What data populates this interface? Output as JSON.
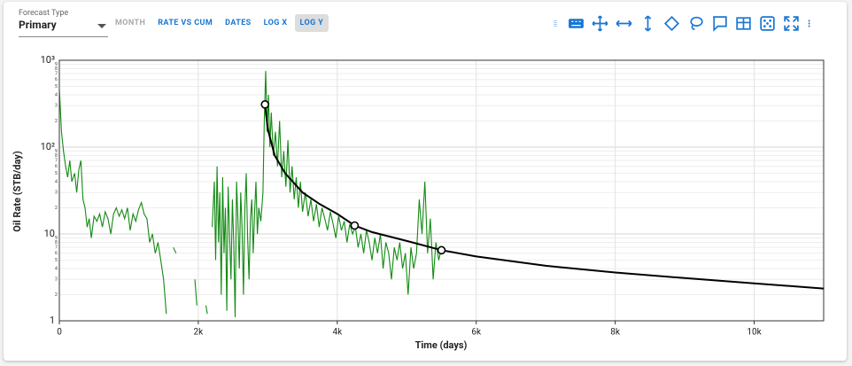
{
  "toolbar": {
    "forecast_type_label": "Forecast Type",
    "forecast_type_value": "Primary",
    "buttons": [
      "MONTH",
      "RATE VS CUM",
      "DATES",
      "LOG X",
      "LOG Y"
    ],
    "disabled_button": 0,
    "active_button": 4
  },
  "chart_data": {
    "type": "line",
    "log_y": true,
    "grid": true,
    "x_label": "Time (days)",
    "y_label": "Oil Rate (STB/day)",
    "xlim": [
      0,
      11000
    ],
    "ylim": [
      1,
      1000
    ],
    "xticks": [
      0,
      {
        "value": 2000,
        "label": "2k"
      },
      {
        "value": 4000,
        "label": "4k"
      },
      {
        "value": 6000,
        "label": "6k"
      },
      {
        "value": 8000,
        "label": "8k"
      },
      {
        "value": 10000,
        "label": "10k"
      }
    ],
    "yticks": [
      1,
      10,
      {
        "value": 100,
        "label": "10²"
      },
      {
        "value": 1000,
        "label": "10³"
      }
    ],
    "y_minor_ticks": [
      {
        "value": 2,
        "label": "2"
      },
      {
        "value": 3,
        "label": "3"
      },
      {
        "value": 4,
        "label": "4"
      },
      {
        "value": 5,
        "label": "5"
      },
      {
        "value": 6,
        "label": "6"
      },
      {
        "value": 7,
        "label": "7"
      },
      {
        "value": 8,
        "label": "8"
      },
      {
        "value": 9,
        "label": "9"
      },
      {
        "value": 20,
        "label": "2"
      },
      {
        "value": 30,
        "label": "3"
      },
      {
        "value": 40,
        "label": "4"
      },
      {
        "value": 50,
        "label": "5"
      },
      {
        "value": 60,
        "label": "6"
      },
      {
        "value": 70,
        "label": "7"
      },
      {
        "value": 80,
        "label": "8"
      },
      {
        "value": 90,
        "label": "9"
      },
      {
        "value": 200,
        "label": "2"
      },
      {
        "value": 300,
        "label": "3"
      },
      {
        "value": 400,
        "label": "4"
      },
      {
        "value": 500,
        "label": "5"
      },
      {
        "value": 600,
        "label": "6"
      },
      {
        "value": 700,
        "label": "7"
      },
      {
        "value": 800,
        "label": "8"
      },
      {
        "value": 900,
        "label": "9"
      }
    ],
    "series": [
      {
        "color": "#138a13",
        "x": [
          0,
          30,
          60,
          90,
          120,
          150,
          180,
          220,
          250,
          280,
          310,
          340,
          370,
          400,
          430,
          460,
          500,
          540,
          580,
          620,
          660,
          700,
          740,
          780,
          820,
          860,
          900,
          940,
          980,
          1020,
          1060,
          1100,
          1140,
          1180,
          1220,
          1260,
          1300,
          1340,
          1380,
          1420,
          1460,
          1500,
          1540,
          1570,
          1640,
          1680,
          1700,
          1950,
          1980,
          2000,
          2110,
          2130,
          2140,
          2200,
          2230,
          2250,
          2270,
          2290,
          2310,
          2330,
          2350,
          2370,
          2390,
          2410,
          2430,
          2450,
          2470,
          2490,
          2510,
          2530,
          2550,
          2570,
          2590,
          2610,
          2630,
          2650,
          2670,
          2690,
          2710,
          2730,
          2750,
          2770,
          2790,
          2810,
          2830,
          2850,
          2870,
          2900,
          2930,
          2950,
          2970,
          2990,
          3010,
          3030,
          3050,
          3080,
          3110,
          3140,
          3170,
          3200,
          3230,
          3260,
          3290,
          3320,
          3350,
          3380,
          3410,
          3440,
          3470,
          3500,
          3540,
          3580,
          3620,
          3660,
          3700,
          3740,
          3780,
          3820,
          3860,
          3900,
          3940,
          3980,
          4020,
          4060,
          4100,
          4140,
          4180,
          4220,
          4260,
          4300,
          4340,
          4380,
          4420,
          4460,
          4500,
          4540,
          4580,
          4620,
          4660,
          4700,
          4740,
          4780,
          4820,
          4860,
          4900,
          4940,
          4980,
          5020,
          5060,
          5100,
          5140,
          5180,
          5220,
          5260,
          5300,
          5340,
          5380,
          5420,
          5460,
          5500,
          5530
        ],
        "values": [
          480,
          150,
          90,
          60,
          45,
          70,
          40,
          50,
          30,
          55,
          70,
          25,
          20,
          12,
          15,
          9,
          16,
          14,
          17,
          12,
          18,
          15,
          10,
          17,
          20,
          16,
          19,
          15,
          20,
          11,
          17,
          14,
          19,
          23,
          17,
          15,
          8,
          10,
          6,
          8,
          5,
          3,
          1.2,
          null,
          7,
          6,
          null,
          3,
          1.5,
          null,
          1.5,
          1.2,
          null,
          12,
          40,
          5,
          60,
          8,
          30,
          2,
          45,
          6,
          20,
          1.3,
          35,
          10,
          3,
          25,
          8,
          1.1,
          40,
          15,
          4,
          30,
          12,
          2,
          20,
          50,
          9,
          3,
          15,
          25,
          6,
          18,
          40,
          10,
          20,
          14,
          30,
          200,
          750,
          150,
          400,
          100,
          250,
          80,
          150,
          60,
          200,
          45,
          90,
          35,
          120,
          30,
          60,
          25,
          45,
          20,
          40,
          18,
          30,
          16,
          25,
          14,
          22,
          12,
          20,
          15,
          11,
          18,
          13,
          9,
          16,
          11,
          14,
          8,
          13,
          10,
          12,
          7,
          10,
          6,
          11,
          8,
          5,
          9,
          6,
          10,
          4,
          8,
          6,
          3,
          7,
          5,
          8,
          4,
          6,
          2,
          7,
          4,
          6,
          25,
          10,
          40,
          6,
          15,
          3,
          8,
          5,
          7,
          6
        ]
      },
      {
        "color": "#000000",
        "x": [
          2960,
          3000,
          3100,
          3250,
          3500,
          3750,
          4000,
          4250,
          4500,
          5000,
          5500,
          6000,
          7000,
          8000,
          9000,
          10000,
          11000
        ],
        "values": [
          310,
          160,
          80,
          50,
          30,
          22,
          17,
          12.5,
          10.5,
          8.3,
          6.5,
          5.5,
          4.3,
          3.6,
          3.1,
          2.7,
          2.35
        ]
      }
    ],
    "fit_points": {
      "x": [
        2960,
        4250,
        5500
      ],
      "values": [
        310,
        12.5,
        6.5
      ]
    }
  }
}
